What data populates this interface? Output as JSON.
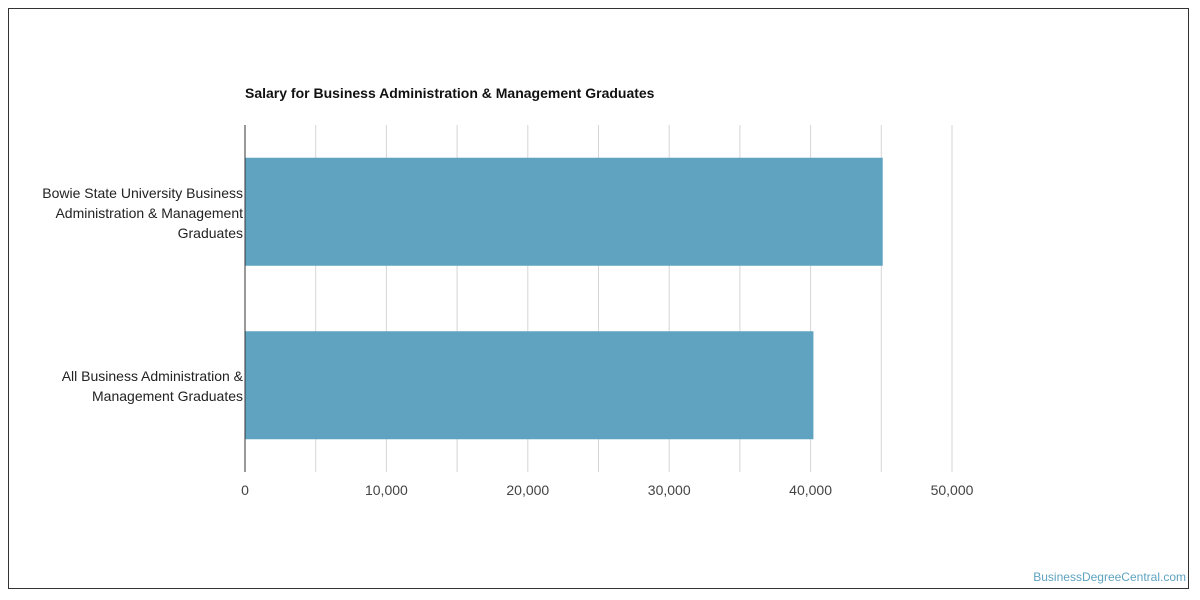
{
  "chart_data": {
    "type": "bar",
    "orientation": "horizontal",
    "title": "Salary for Business Administration & Management Graduates",
    "categories": [
      "Bowie State University Business Administration & Management Graduates",
      "All Business Administration & Management Graduates"
    ],
    "values": [
      45100,
      40200
    ],
    "xlim": [
      0,
      50000
    ],
    "xticks": [
      0,
      10000,
      20000,
      30000,
      40000,
      50000
    ],
    "xtick_labels": [
      "0",
      "10,000",
      "20,000",
      "30,000",
      "40,000",
      "50,000"
    ],
    "bar_color": "#5fa3c0",
    "grid": true
  },
  "credit": {
    "text": "BusinessDegreeCentral.com",
    "color": "#5fa3c0"
  }
}
